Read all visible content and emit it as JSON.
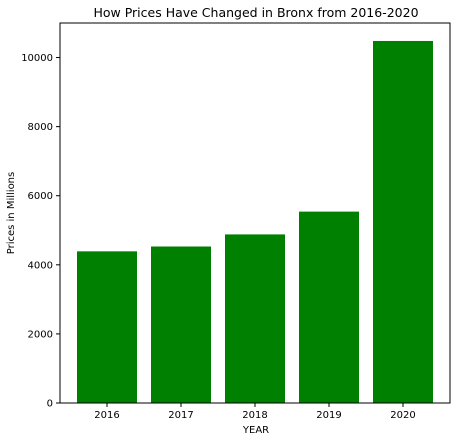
{
  "chart_data": {
    "type": "bar",
    "title": "How Prices Have Changed in Bronx from 2016-2020",
    "xlabel": "YEAR",
    "ylabel": "Prices in Millions",
    "categories": [
      "2016",
      "2017",
      "2018",
      "2019",
      "2020"
    ],
    "values": [
      4390,
      4530,
      4880,
      5540,
      10480
    ],
    "ylim": [
      0,
      11000
    ],
    "yticks": [
      0,
      2000,
      4000,
      6000,
      8000,
      10000
    ],
    "grid": false,
    "bar_color": "#008000"
  }
}
